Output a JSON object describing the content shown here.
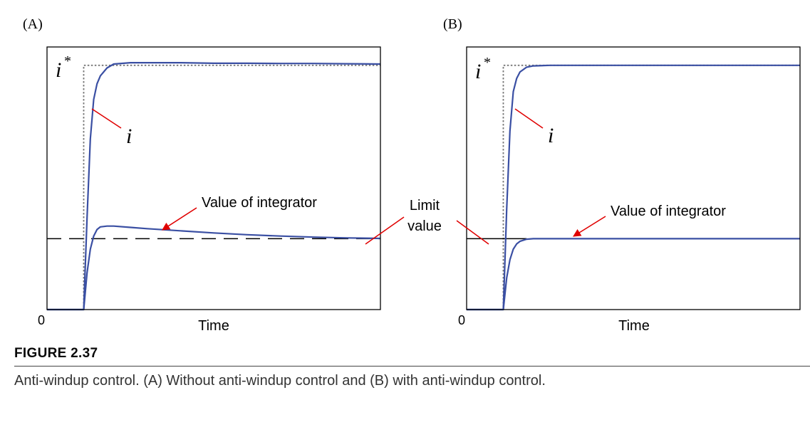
{
  "figure": {
    "title": "FIGURE 2.37",
    "caption": "Anti-windup control. (A) Without anti-windup control and (B) with anti-windup control."
  },
  "shared": {
    "limit_label_line1": "Limit",
    "limit_label_line2": "value"
  },
  "colors": {
    "signal": "#3a4fa3",
    "reference": "#777777",
    "limit": "#000000",
    "arrow": "#e00000",
    "frame": "#000000"
  },
  "chart_data": [
    {
      "type": "line",
      "panel": "(A)",
      "xlabel": "Time",
      "ylabel": "",
      "origin_label": "0",
      "xlim": [
        0,
        100
      ],
      "ylim": [
        0,
        100
      ],
      "limit_value": 27,
      "reference": {
        "label": "i",
        "sup": "*",
        "step_x": 11,
        "value": 93
      },
      "series": [
        {
          "name": "i",
          "x": [
            0,
            11,
            12,
            13,
            14,
            15,
            16,
            18,
            20,
            25,
            30,
            40,
            50,
            60,
            70,
            80,
            90,
            100
          ],
          "y": [
            0,
            0,
            35,
            65,
            80,
            86,
            89,
            92,
            93.5,
            94,
            94,
            94,
            93.8,
            93.8,
            93.7,
            93.7,
            93.6,
            93.5
          ]
        },
        {
          "name": "Value of integrator",
          "x": [
            0,
            11,
            12,
            13,
            14,
            15,
            16,
            18,
            20,
            25,
            30,
            40,
            50,
            60,
            70,
            80,
            90,
            100
          ],
          "y": [
            0,
            0,
            14,
            23,
            28,
            30.5,
            31.5,
            31.8,
            31.8,
            31.3,
            30.8,
            30,
            29.2,
            28.5,
            28,
            27.6,
            27.3,
            27.1
          ]
        }
      ],
      "annotations": {
        "series_label": "i",
        "integrator_label": "Value of integrator"
      }
    },
    {
      "type": "line",
      "panel": "(B)",
      "xlabel": "Time",
      "ylabel": "",
      "origin_label": "0",
      "xlim": [
        0,
        100
      ],
      "ylim": [
        0,
        100
      ],
      "limit_value": 27,
      "reference": {
        "label": "i",
        "sup": "*",
        "step_x": 11,
        "value": 93
      },
      "series": [
        {
          "name": "i",
          "x": [
            0,
            11,
            12,
            13,
            14,
            15,
            16,
            18,
            20,
            25,
            30,
            40,
            50,
            60,
            70,
            80,
            90,
            100
          ],
          "y": [
            0,
            0,
            38,
            68,
            83,
            88,
            90.5,
            92.3,
            92.8,
            93,
            93,
            93,
            93,
            93,
            93,
            93,
            93,
            93
          ]
        },
        {
          "name": "Value of integrator",
          "x": [
            0,
            11,
            12,
            13,
            14,
            15,
            16,
            18,
            20,
            25,
            30,
            40,
            50,
            60,
            70,
            80,
            90,
            100
          ],
          "y": [
            0,
            0,
            12,
            19,
            23,
            25,
            26,
            26.8,
            27,
            27,
            27,
            27,
            27,
            27,
            27,
            27,
            27,
            27
          ]
        }
      ],
      "annotations": {
        "series_label": "i",
        "integrator_label": "Value of integrator"
      }
    }
  ]
}
